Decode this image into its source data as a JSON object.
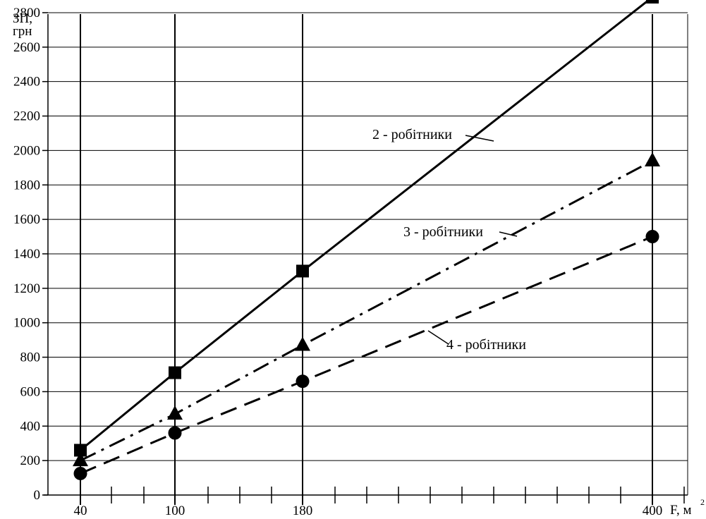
{
  "chart_data": {
    "type": "line",
    "x": [
      40,
      100,
      180,
      400
    ],
    "xticks": [
      "40",
      "100",
      "180",
      "400"
    ],
    "xlabel": "F, м",
    "xlabel_sup": "2",
    "ylabel_line1": "ЗП,",
    "ylabel_line2": "грн",
    "ylim": [
      0,
      2900
    ],
    "yticks": [
      "0",
      "200",
      "400",
      "600",
      "800",
      "1000",
      "1200",
      "1400",
      "1600",
      "1800",
      "2000",
      "2200",
      "2400",
      "2600",
      "2800"
    ],
    "grid": "horizontal and vertical at x ticks",
    "series": [
      {
        "name": "2 - робітники",
        "marker": "square",
        "dash": "solid",
        "values": [
          260,
          710,
          1300,
          2890
        ]
      },
      {
        "name": "3 - робітники",
        "marker": "triangle",
        "dash": "dash-dot",
        "values": [
          200,
          470,
          870,
          1940
        ]
      },
      {
        "name": "4 - робітники",
        "marker": "circle",
        "dash": "dashed",
        "values": [
          125,
          360,
          660,
          1500
        ]
      }
    ]
  }
}
